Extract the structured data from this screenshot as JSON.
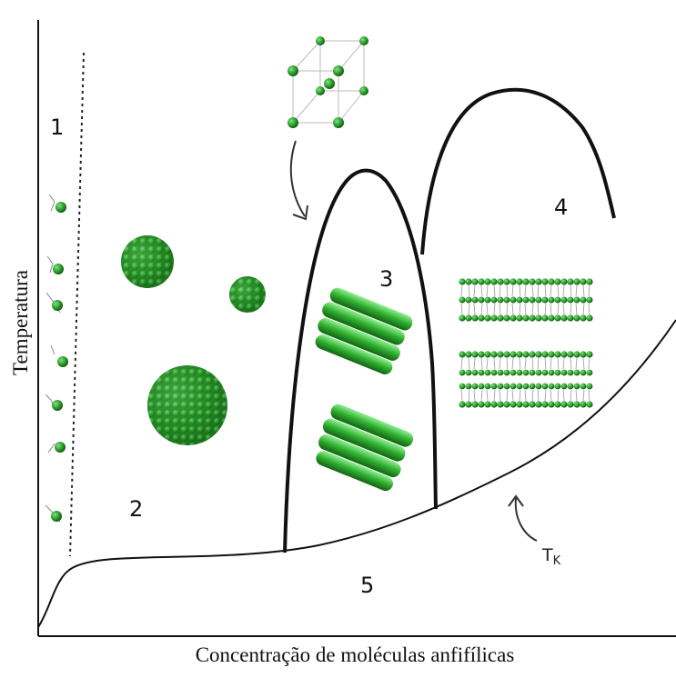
{
  "axes": {
    "x_label": "Concentração de moléculas anfifílicas",
    "y_label": "Temperatura"
  },
  "regions": {
    "r1": "1",
    "r2": "2",
    "r3": "3",
    "r4": "4",
    "r5": "5"
  },
  "krafft": {
    "main": "T",
    "sub": "K"
  },
  "colors": {
    "molecule": "#2e9e2e",
    "molecule_dark": "#176b17",
    "line": "#111111"
  }
}
